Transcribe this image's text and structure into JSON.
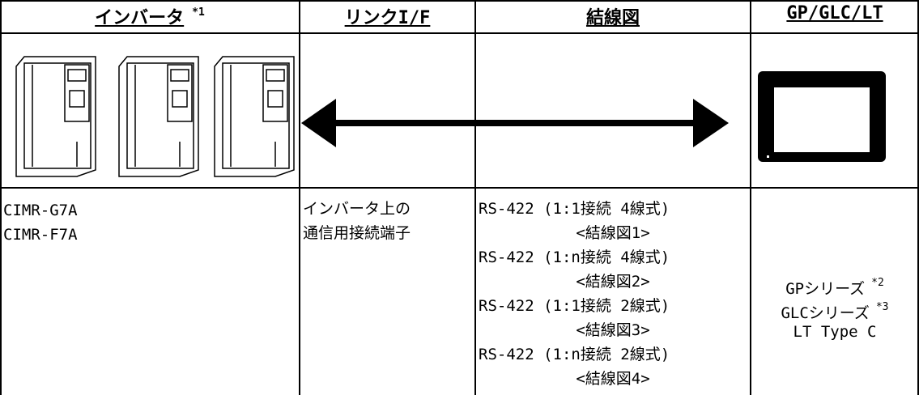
{
  "table": {
    "headers": [
      {
        "text": "インバータ",
        "note": "*1"
      },
      {
        "text": "リンクI/F"
      },
      {
        "text": "結線図"
      },
      {
        "text": "GP/GLC/LT"
      }
    ],
    "devices": [
      "CIMR-G7A",
      "CIMR-F7A"
    ],
    "link_if": [
      "インバータ上の",
      "通信用接続端子"
    ],
    "wiring": [
      "RS-422 (1:1接続 4線式)",
      "<結線図1>",
      "RS-422 (1:n接続 4線式)",
      "<結線図2>",
      "RS-422 (1:1接続 2線式)",
      "<結線図3>",
      "RS-422 (1:n接続 2線式)",
      "<結線図4>"
    ],
    "targets": [
      {
        "text": "GPシリーズ",
        "note": "*2"
      },
      {
        "text": "GLCシリーズ",
        "note": "*3"
      },
      {
        "text": "LT Type C"
      }
    ]
  }
}
